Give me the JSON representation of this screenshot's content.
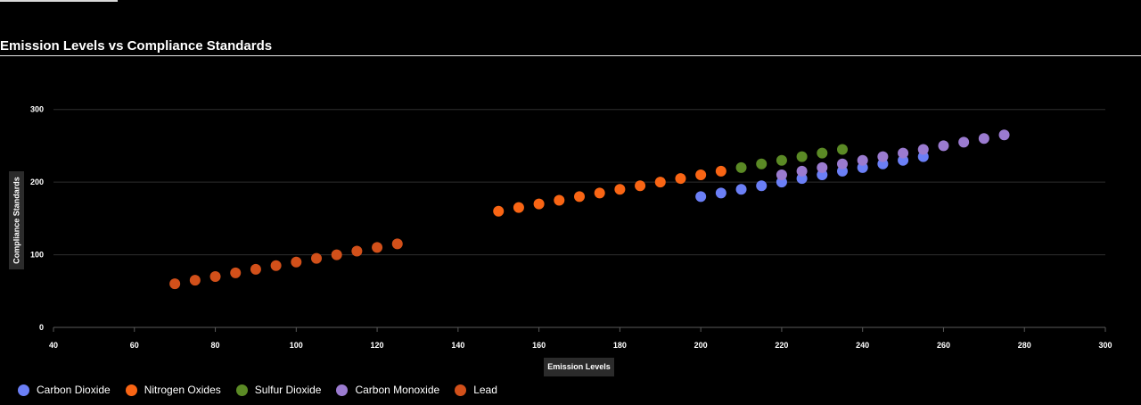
{
  "page": {
    "title": "Emission Levels vs Compliance Standards"
  },
  "chart_data": {
    "type": "scatter",
    "title": "Emission Levels vs Compliance Standards",
    "xlabel": "Emission Levels",
    "ylabel": "Compliance Standards",
    "xlim": [
      40,
      300
    ],
    "ylim": [
      0,
      350
    ],
    "xticks": [
      40,
      60,
      80,
      100,
      120,
      140,
      160,
      180,
      200,
      220,
      240,
      260,
      280,
      300
    ],
    "yticks": [
      0,
      100,
      200,
      300
    ],
    "grid": "horizontal",
    "legend_position": "bottom-left",
    "series": [
      {
        "name": "Carbon Dioxide",
        "color": "#6b7ff6",
        "points": [
          [
            200,
            180
          ],
          [
            205,
            185
          ],
          [
            210,
            190
          ],
          [
            215,
            195
          ],
          [
            220,
            200
          ],
          [
            225,
            205
          ],
          [
            230,
            210
          ],
          [
            235,
            215
          ],
          [
            240,
            220
          ],
          [
            245,
            225
          ],
          [
            250,
            230
          ],
          [
            255,
            235
          ]
        ]
      },
      {
        "name": "Nitrogen Oxides",
        "color": "#f96514",
        "points": [
          [
            150,
            160
          ],
          [
            155,
            165
          ],
          [
            160,
            170
          ],
          [
            165,
            175
          ],
          [
            170,
            180
          ],
          [
            175,
            185
          ],
          [
            180,
            190
          ],
          [
            185,
            195
          ],
          [
            190,
            200
          ],
          [
            195,
            205
          ],
          [
            200,
            210
          ],
          [
            205,
            215
          ]
        ]
      },
      {
        "name": "Sulfur Dioxide",
        "color": "#5b8a25",
        "points": [
          [
            210,
            220
          ],
          [
            215,
            225
          ],
          [
            220,
            230
          ],
          [
            225,
            235
          ],
          [
            230,
            240
          ],
          [
            235,
            245
          ]
        ]
      },
      {
        "name": "Carbon Monoxide",
        "color": "#9b7bd0",
        "points": [
          [
            220,
            210
          ],
          [
            225,
            215
          ],
          [
            230,
            220
          ],
          [
            235,
            225
          ],
          [
            240,
            230
          ],
          [
            245,
            235
          ],
          [
            250,
            240
          ],
          [
            255,
            245
          ],
          [
            260,
            250
          ],
          [
            265,
            255
          ],
          [
            270,
            260
          ],
          [
            275,
            265
          ]
        ]
      },
      {
        "name": "Lead",
        "color": "#d2501a",
        "points": [
          [
            70,
            60
          ],
          [
            75,
            65
          ],
          [
            80,
            70
          ],
          [
            85,
            75
          ],
          [
            90,
            80
          ],
          [
            95,
            85
          ],
          [
            100,
            90
          ],
          [
            105,
            95
          ],
          [
            110,
            100
          ],
          [
            115,
            105
          ],
          [
            120,
            110
          ],
          [
            125,
            115
          ]
        ]
      }
    ]
  }
}
